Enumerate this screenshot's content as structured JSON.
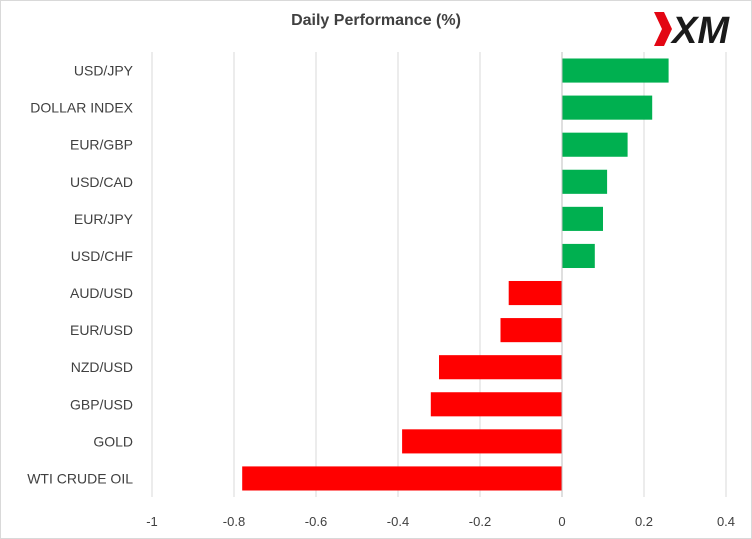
{
  "logo": {
    "text": "XM",
    "accent": "#e30613",
    "color": "#1a1a1a"
  },
  "chart_data": {
    "type": "bar",
    "orientation": "horizontal",
    "title": "Daily Performance (%)",
    "categories": [
      "USD/JPY",
      "DOLLAR INDEX",
      "EUR/GBP",
      "USD/CAD",
      "EUR/JPY",
      "USD/CHF",
      "AUD/USD",
      "EUR/USD",
      "NZD/USD",
      "GBP/USD",
      "GOLD",
      "WTI CRUDE OIL"
    ],
    "values": [
      0.26,
      0.22,
      0.16,
      0.11,
      0.1,
      0.08,
      -0.13,
      -0.15,
      -0.3,
      -0.32,
      -0.39,
      -0.78
    ],
    "xlim": [
      -1,
      0.4
    ],
    "xticks": [
      -1,
      -0.8,
      -0.6,
      -0.4,
      -0.2,
      0,
      0.2,
      0.4
    ],
    "xtick_labels": [
      "-1",
      "-0.8",
      "-0.6",
      "-0.4",
      "-0.2",
      "0",
      "0.2",
      "0.4"
    ],
    "xlabel": "",
    "ylabel": "",
    "grid": "vertical",
    "legend": "none",
    "colors": {
      "positive": "#00b050",
      "negative": "#ff0000",
      "grid": "#d9d9d9",
      "text": "#404040"
    }
  }
}
